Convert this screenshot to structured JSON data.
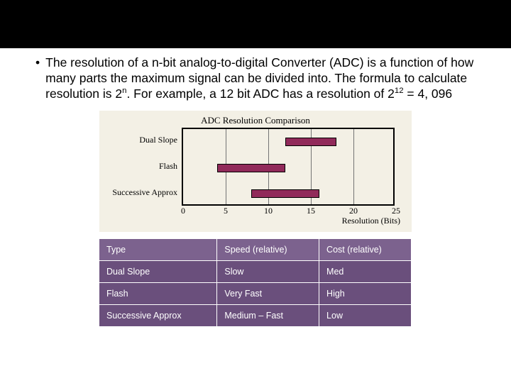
{
  "top_band_color": "#000000",
  "bullet": {
    "dot": "•",
    "text_html": "The resolution of a n-bit analog-to-digital Converter (ADC) is a function of how many parts the maximum signal can be divided into. The formula to calculate resolution is 2<sup>n</sup>. For example, a 12 bit ADC has a resolution of 2<sup>12</sup> = 4, 096"
  },
  "chart": {
    "type": "horizontal_range_bar",
    "title": "ADC Resolution Comparison",
    "background_color": "#f3f0e5",
    "plot_border_color": "#000000",
    "grid_color": "#747474",
    "xmin": 0,
    "xmax": 25,
    "x_ticks": [
      0,
      5,
      10,
      15,
      20,
      25
    ],
    "x_label": "Resolution (Bits)",
    "y_labels": [
      "Dual Slope",
      "Flash",
      "Successive Approx"
    ],
    "bar_color": "#912a5a",
    "bars": [
      {
        "row": 0,
        "start": 12,
        "end": 18
      },
      {
        "row": 1,
        "start": 4,
        "end": 12
      },
      {
        "row": 2,
        "start": 8,
        "end": 16
      }
    ],
    "title_fontsize": 13,
    "label_fontsize": 12
  },
  "table": {
    "header_bg": "#7c628e",
    "row_bg": "#6a4f7c",
    "cell_border": "#ffffff",
    "text_color": "#ffffff",
    "columns": [
      "Type",
      "Speed (relative)",
      "Cost (relative)"
    ],
    "rows": [
      [
        "Dual Slope",
        "Slow",
        "Med"
      ],
      [
        "Flash",
        "Very Fast",
        "High"
      ],
      [
        "Successive Approx",
        "Medium – Fast",
        "Low"
      ]
    ]
  }
}
